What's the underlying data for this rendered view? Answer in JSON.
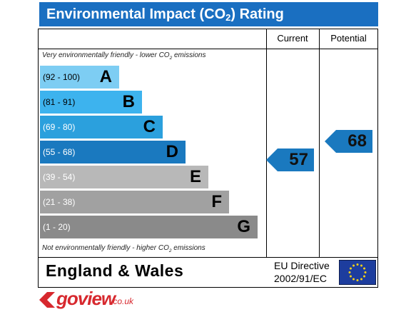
{
  "title": {
    "parts": [
      "Environmental Impact (CO",
      "2",
      ") Rating"
    ]
  },
  "columns": [
    "Current",
    "Potential"
  ],
  "top_note": {
    "parts": [
      "Very environmentally friendly - lower CO",
      "2",
      " emissions"
    ]
  },
  "bands": [
    {
      "range": "(92 - 100)",
      "letter": "A"
    },
    {
      "range": "(81 - 91)",
      "letter": "B"
    },
    {
      "range": "(69 - 80)",
      "letter": "C"
    },
    {
      "range": "(55 - 68)",
      "letter": "D"
    },
    {
      "range": "(39 - 54)",
      "letter": "E"
    },
    {
      "range": "(21 - 38)",
      "letter": "F"
    },
    {
      "range": "(1 - 20)",
      "letter": "G"
    }
  ],
  "bottom_note": {
    "parts": [
      "Not environmentally friendly - higher CO",
      "2",
      " emissions"
    ]
  },
  "current": 57,
  "potential": 68,
  "region": "England & Wales",
  "directive": [
    "EU Directive",
    "2002/91/EC"
  ],
  "logo": {
    "name": "goview",
    "domain": ".co.uk"
  }
}
